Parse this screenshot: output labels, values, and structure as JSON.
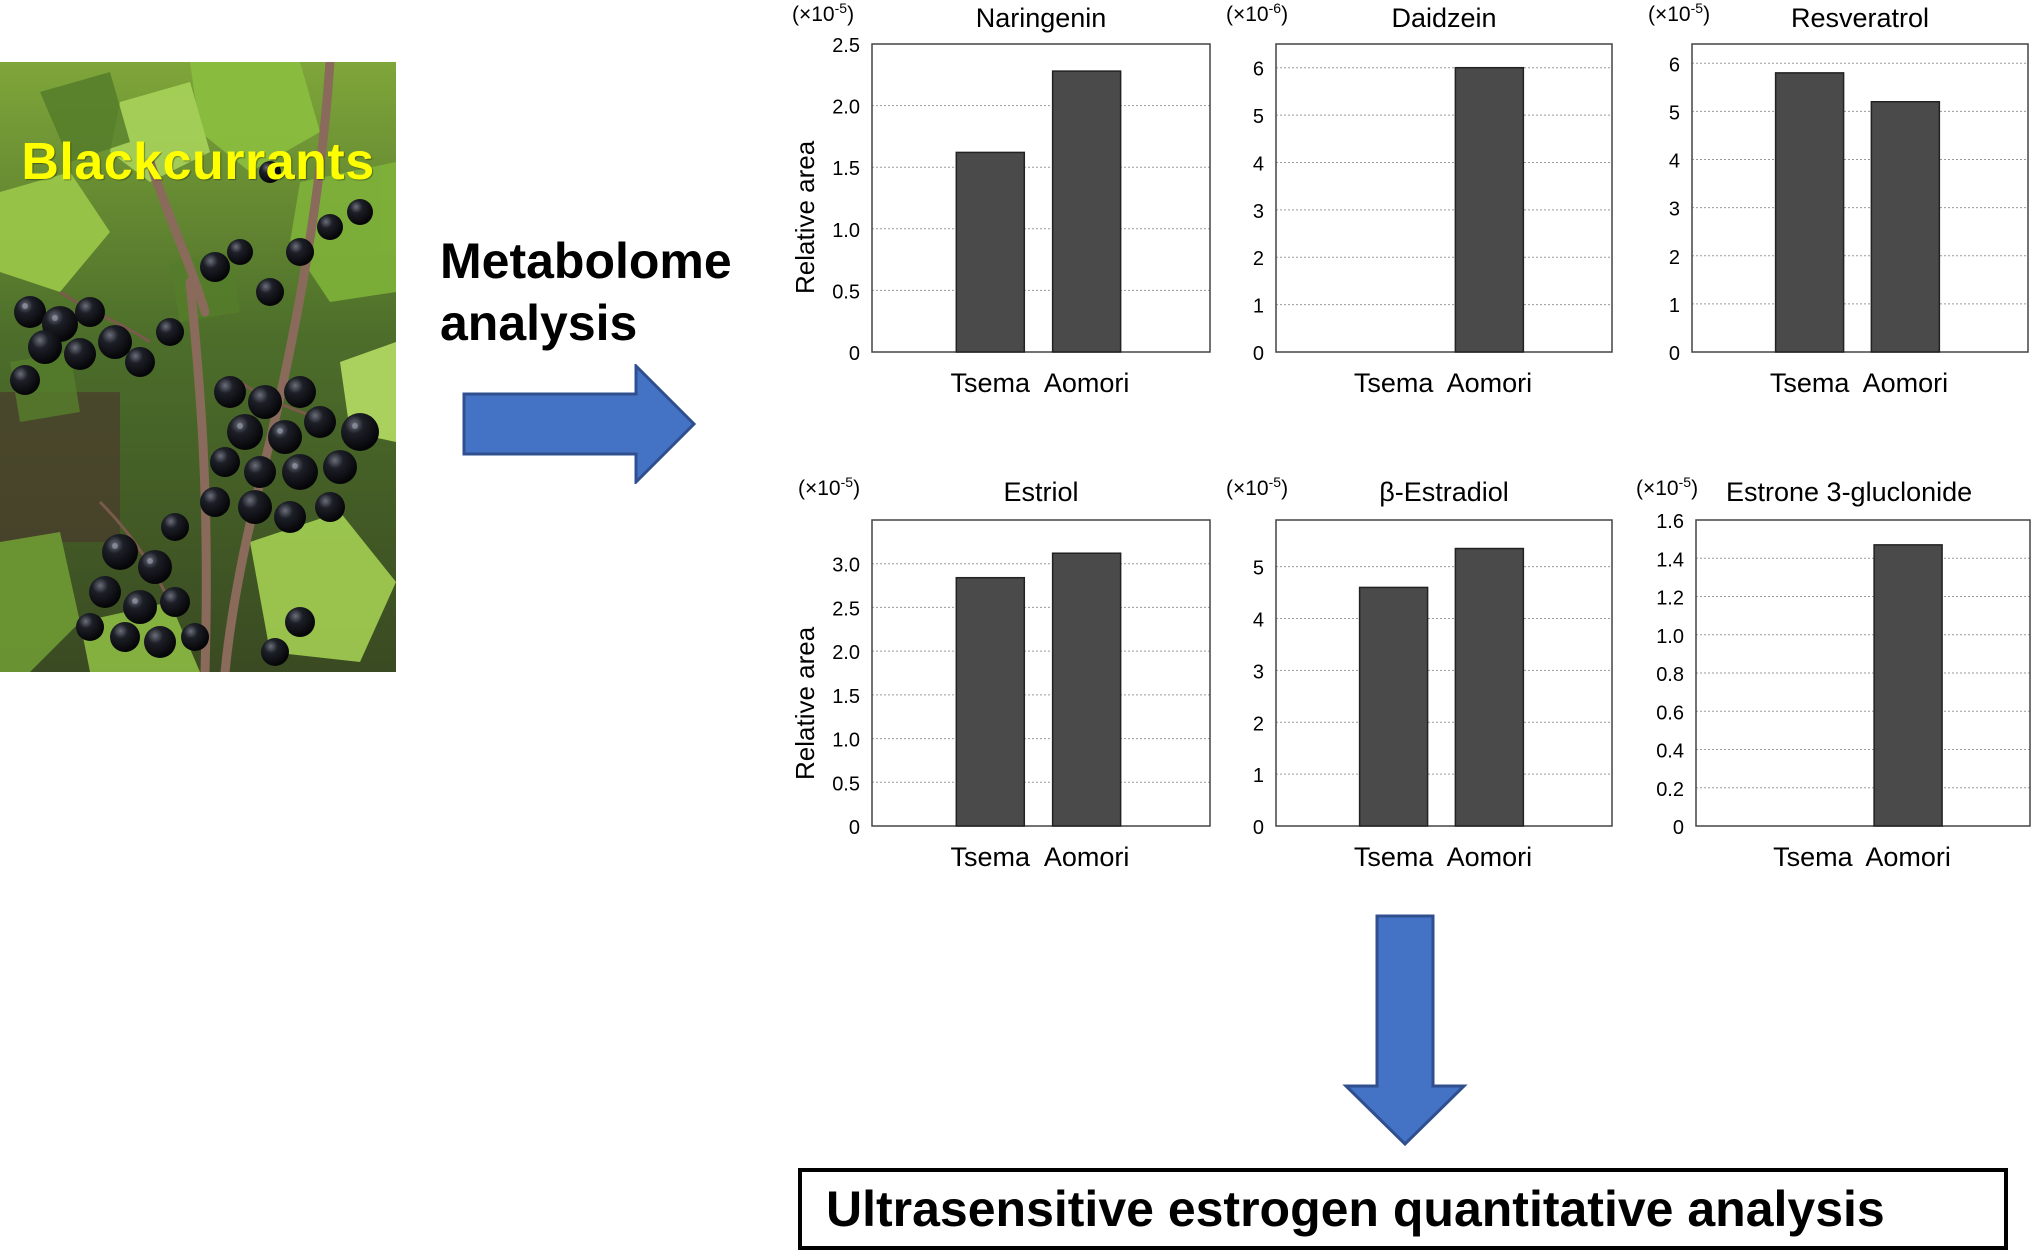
{
  "photo": {
    "label": "Blackcurrants"
  },
  "process": {
    "label": "Metabolome\nanalysis"
  },
  "result": {
    "label": "Ultrasensitive estrogen quantitative analysis"
  },
  "colors": {
    "bar": "#4a4a4a",
    "arrow": "#4472c4",
    "arrow_stroke": "#2f4f8f",
    "label_yellow": "#ffff00"
  },
  "icons": {
    "right_arrow": "right-arrow-icon",
    "down_arrow": "down-arrow-icon"
  },
  "chart_data": [
    {
      "type": "bar",
      "title": "Naringenin",
      "multiplier": "(×10",
      "exponent": "-5",
      "ylabel": "Relative area",
      "categories": [
        "Tsema",
        "Aomori"
      ],
      "values": [
        1.62,
        2.28
      ],
      "ylim": [
        0,
        2.5
      ],
      "yticks": [
        "0",
        "0.5",
        "1.0",
        "1.5",
        "2.0",
        "2.5"
      ],
      "grid": true
    },
    {
      "type": "bar",
      "title": "Daidzein",
      "multiplier": "(×10",
      "exponent": "-6",
      "ylabel": "",
      "categories": [
        "Tsema",
        "Aomori"
      ],
      "values": [
        0,
        6.0
      ],
      "ylim": [
        0,
        6.5
      ],
      "yticks": [
        "0",
        "1",
        "2",
        "3",
        "4",
        "5",
        "6"
      ],
      "grid": true
    },
    {
      "type": "bar",
      "title": "Resveratrol",
      "multiplier": "(×10",
      "exponent": "-5",
      "ylabel": "",
      "categories": [
        "Tsema",
        "Aomori"
      ],
      "values": [
        5.8,
        5.2
      ],
      "ylim": [
        0,
        6.4
      ],
      "yticks": [
        "0",
        "1",
        "2",
        "3",
        "4",
        "5",
        "6"
      ],
      "grid": true
    },
    {
      "type": "bar",
      "title": "Estriol",
      "multiplier": "(×10",
      "exponent": "-5",
      "ylabel": "Relative area",
      "categories": [
        "Tsema",
        "Aomori"
      ],
      "values": [
        2.84,
        3.12
      ],
      "ylim": [
        0,
        3.5
      ],
      "yticks": [
        "0",
        "0.5",
        "1.0",
        "1.5",
        "2.0",
        "2.5",
        "3.0"
      ],
      "grid": true
    },
    {
      "type": "bar",
      "title": "β-Estradiol",
      "multiplier": "(×10",
      "exponent": "-5",
      "ylabel": "",
      "categories": [
        "Tsema",
        "Aomori"
      ],
      "values": [
        4.6,
        5.35
      ],
      "ylim": [
        0,
        5.9
      ],
      "yticks": [
        "0",
        "1",
        "2",
        "3",
        "4",
        "5"
      ],
      "grid": true
    },
    {
      "type": "bar",
      "title": "Estrone 3-gluclonide",
      "multiplier": "(×10",
      "exponent": "-5",
      "ylabel": "",
      "categories": [
        "Tsema",
        "Aomori"
      ],
      "values": [
        0,
        1.47
      ],
      "ylim": [
        0,
        1.6
      ],
      "yticks": [
        "0",
        "0.2",
        "0.4",
        "0.6",
        "0.8",
        "1.0",
        "1.2",
        "1.4",
        "1.6"
      ],
      "grid": true
    }
  ]
}
